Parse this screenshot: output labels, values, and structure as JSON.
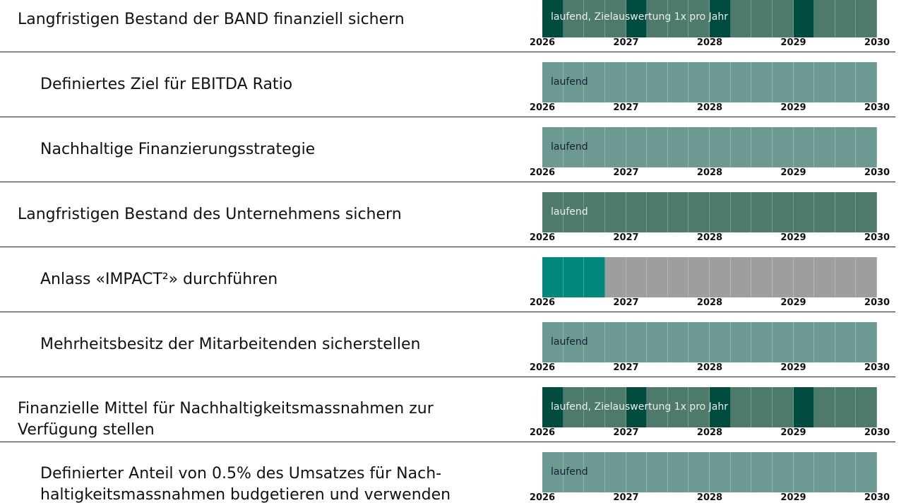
{
  "years": [
    "2026",
    "2027",
    "2028",
    "2029",
    "2030"
  ],
  "rows": [
    {
      "label": "Langfristigen Bestand der BAND finanziell sichern",
      "level": 1,
      "bar_label": "laufend, Zielauswertung 1x pro Jahr",
      "segments": [
        "#004d40",
        "#4e7a6c",
        "#4e7a6c",
        "#4e7a6c",
        "#004d40",
        "#4e7a6c",
        "#4e7a6c",
        "#4e7a6c",
        "#004d40",
        "#4e7a6c",
        "#4e7a6c",
        "#4e7a6c",
        "#004d40",
        "#4e7a6c",
        "#4e7a6c",
        "#4e7a6c"
      ]
    },
    {
      "label": "Definiertes Ziel für EBITDA Ratio",
      "level": 2,
      "bar_label": "laufend",
      "segments": [
        "#6c9a93",
        "#6c9a93",
        "#6c9a93",
        "#6c9a93",
        "#6c9a93",
        "#6c9a93",
        "#6c9a93",
        "#6c9a93",
        "#6c9a93",
        "#6c9a93",
        "#6c9a93",
        "#6c9a93",
        "#6c9a93",
        "#6c9a93",
        "#6c9a93",
        "#6c9a93"
      ]
    },
    {
      "label": "Nachhaltige Finanzierungsstrategie",
      "level": 2,
      "bar_label": "laufend",
      "segments": [
        "#6c9a93",
        "#6c9a93",
        "#6c9a93",
        "#6c9a93",
        "#6c9a93",
        "#6c9a93",
        "#6c9a93",
        "#6c9a93",
        "#6c9a93",
        "#6c9a93",
        "#6c9a93",
        "#6c9a93",
        "#6c9a93",
        "#6c9a93",
        "#6c9a93",
        "#6c9a93"
      ]
    },
    {
      "label": "Langfristigen Bestand des Unternehmens sichern",
      "level": 1,
      "bar_label": "laufend",
      "segments": [
        "#4e7a6c",
        "#4e7a6c",
        "#4e7a6c",
        "#4e7a6c",
        "#4e7a6c",
        "#4e7a6c",
        "#4e7a6c",
        "#4e7a6c",
        "#4e7a6c",
        "#4e7a6c",
        "#4e7a6c",
        "#4e7a6c",
        "#4e7a6c",
        "#4e7a6c",
        "#4e7a6c",
        "#4e7a6c"
      ]
    },
    {
      "label": "Anlass «IMPACT²» durchführen",
      "level": 2,
      "segments": [
        "#00897b",
        "#00897b",
        "#00897b",
        "#9e9e9e",
        "#9e9e9e",
        "#9e9e9e",
        "#9e9e9e",
        "#9e9e9e",
        "#9e9e9e",
        "#9e9e9e",
        "#9e9e9e",
        "#9e9e9e",
        "#9e9e9e",
        "#9e9e9e",
        "#9e9e9e",
        "#9e9e9e"
      ]
    },
    {
      "label": "Mehrheitsbesitz der Mitarbeitenden sicherstellen",
      "level": 2,
      "bar_label": "laufend",
      "segments": [
        "#6c9a93",
        "#6c9a93",
        "#6c9a93",
        "#6c9a93",
        "#6c9a93",
        "#6c9a93",
        "#6c9a93",
        "#6c9a93",
        "#6c9a93",
        "#6c9a93",
        "#6c9a93",
        "#6c9a93",
        "#6c9a93",
        "#6c9a93",
        "#6c9a93",
        "#6c9a93"
      ]
    },
    {
      "label": "Finanzielle Mittel für Nachhaltigkeitsmassnahmen zur Verfügung stellen",
      "level": 1,
      "bar_label": "laufend, Zielauswertung 1x pro Jahr",
      "segments": [
        "#004d40",
        "#4e7a6c",
        "#4e7a6c",
        "#4e7a6c",
        "#004d40",
        "#4e7a6c",
        "#4e7a6c",
        "#4e7a6c",
        "#004d40",
        "#4e7a6c",
        "#4e7a6c",
        "#4e7a6c",
        "#004d40",
        "#4e7a6c",
        "#4e7a6c",
        "#4e7a6c"
      ]
    },
    {
      "label": "Definierter Anteil von 0.5% des Umsatzes für Nach-haltigkeitsmassnahmen budgetieren und verwenden",
      "level": 2,
      "bar_label": "laufend",
      "segments": [
        "#6c9a93",
        "#6c9a93",
        "#6c9a93",
        "#6c9a93",
        "#6c9a93",
        "#6c9a93",
        "#6c9a93",
        "#6c9a93",
        "#6c9a93",
        "#6c9a93",
        "#6c9a93",
        "#6c9a93",
        "#6c9a93",
        "#6c9a93",
        "#6c9a93",
        "#6c9a93"
      ]
    }
  ]
}
